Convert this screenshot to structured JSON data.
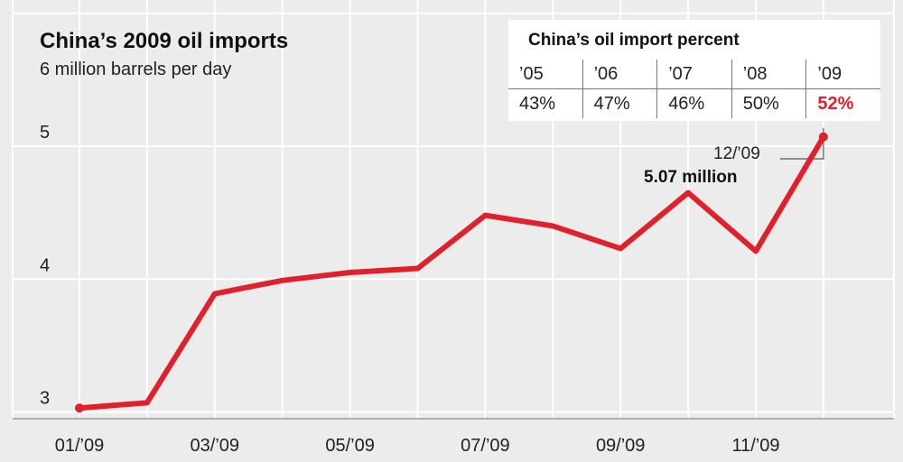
{
  "colors": {
    "line": "#e0202b",
    "background": "#ececec",
    "grid": "#ffffff",
    "highlight": "#e0202b"
  },
  "inset": {
    "title": "China’s oil import percent",
    "years": [
      "’05",
      "’06",
      "’07",
      "’08",
      "’09"
    ],
    "percents": [
      "43%",
      "47%",
      "46%",
      "50%",
      "52%"
    ],
    "highlight_index": 4
  },
  "callout": {
    "date": "12/’09",
    "value": "5.07 million"
  },
  "chart_data": {
    "type": "line",
    "title": "China’s 2009 oil imports",
    "subtitle": "6 million barrels per day",
    "x": [
      "01/’09",
      "02/’09",
      "03/’09",
      "04/’09",
      "05/’09",
      "06/’09",
      "07/’09",
      "08/’09",
      "09/’09",
      "10/’09",
      "11/’09",
      "12/’09"
    ],
    "x_tick_labels": [
      "01/’09",
      "03/’09",
      "05/’09",
      "07/’09",
      "09/’09",
      "11/’09"
    ],
    "y_ticks": [
      3,
      4,
      5
    ],
    "ylim": [
      2.95,
      6.1
    ],
    "grid": true,
    "series": [
      {
        "values": [
          3.03,
          3.07,
          3.89,
          3.99,
          4.05,
          4.08,
          4.48,
          4.4,
          4.23,
          4.65,
          4.21,
          5.07
        ]
      }
    ]
  }
}
